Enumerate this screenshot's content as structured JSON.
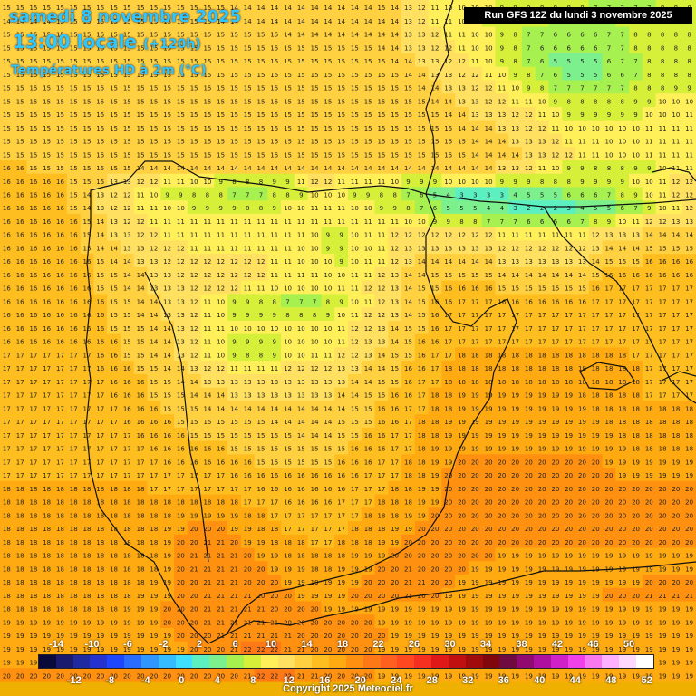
{
  "header": {
    "date": "samedi 8 novembre 2025",
    "time": "13:00 locale",
    "lead": "(+120h)",
    "variable": "Températures HD à 2m (°C)"
  },
  "run_info": "Run GFS 12Z du lundi 3 novembre 2025",
  "copyright": "Copyright 2025 Meteociel.fr",
  "legend": {
    "top_labels": [
      "-14",
      "-10",
      "-6",
      "-2",
      "2",
      "6",
      "10",
      "14",
      "18",
      "22",
      "26",
      "30",
      "34",
      "38",
      "42",
      "46",
      "50"
    ],
    "bottom_labels": [
      "-12",
      "-8",
      "-4",
      "0",
      "4",
      "8",
      "12",
      "16",
      "20",
      "24",
      "28",
      "32",
      "36",
      "40",
      "44",
      "48",
      "52"
    ],
    "colors": [
      "#0a0a3a",
      "#1a1a6e",
      "#1f2aa0",
      "#2632d0",
      "#1e46ff",
      "#2a6cff",
      "#2f95ff",
      "#34bcff",
      "#3ee0ff",
      "#5cf0c0",
      "#7cf08c",
      "#a6f050",
      "#d6f03a",
      "#fff05a",
      "#ffe060",
      "#ffd040",
      "#ffbe20",
      "#ffaa10",
      "#ff9010",
      "#ff7818",
      "#ff6020",
      "#ff4820",
      "#f53020",
      "#e01818",
      "#c01010",
      "#a00c0c",
      "#80080c",
      "#700a40",
      "#900a70",
      "#b010a0",
      "#d020c8",
      "#f040e8",
      "#f878f0",
      "#ffb0ff",
      "#ffd8ff",
      "#ffffff"
    ]
  },
  "grid": {
    "rows": [
      "15 15 15 15 15 15 15 15 15 15 15 15 15 15 15 15 15 14 14 14 14 14 14 14 14 14 14 14 15 14 13 12 11 10 10 10 10 9 9 9 8 8 8 8 7 7 7 7 7 8 8 8",
      "14 14 14 14 15 15 15 15 15 15 15 15 15 15 15 15 14 14 14 14 14 14 14 14 14 14 14 14 14 14 13 12 11 11 10 10 9 9 8 8 8 7 7 7 7 7 8 8 8 8 8 8",
      "15 15 15 15 15 15 15 15 15 15 15 15 15 15 15 15 15 15 15 15 15 14 14 14 14 14 14 14 14 14 13 13 12 11 11 10 10 9 8 7 7 6 6 6 6 7 7 8 8 8 8 8",
      "15 15 15 15 15 15 15 15 15 15 15 15 15 15 15 15 15 15 15 15 15 15 15 15 15 15 15 15 14 14 13 13 12 12 11 10 10 9 8 7 6 6 6 6 6 7 7 8 8 8 8 8",
      "15 15 15 15 15 15 15 15 15 15 15 15 15 15 15 15 15 15 15 15 15 15 15 15 15 15 15 15 15 14 14 13 13 12 12 11 10 9 8 7 6 5 5 5 5 6 7 7 8 8 8 8",
      "15 15 15 15 15 15 15 15 15 15 15 15 15 15 15 15 15 15 15 15 15 15 15 15 15 15 15 15 15 15 14 14 13 13 12 12 11 10 9 8 7 6 5 5 5 6 6 7 8 8 8 8",
      "15 15 15 15 15 15 15 15 15 15 15 15 15 15 15 15 15 15 15 15 15 15 15 15 15 15 15 15 15 15 15 14 14 13 13 12 12 11 10 9 8 7 7 7 7 7 7 8 8 8 9 9",
      "15 15 15 15 15 15 15 15 15 15 15 15 15 15 15 15 15 15 15 15 15 15 15 15 15 15 15 15 15 15 15 15 14 14 13 13 12 12 11 11 10 9 8 8 8 8 8 9 9 10 10 10",
      "15 15 15 15 15 15 15 15 15 15 15 15 15 15 15 15 15 15 15 15 15 15 15 15 15 15 15 15 15 15 15 15 15 14 14 13 13 13 12 12 11 10 9 9 9 9 9 9 10 10 10 11",
      "15 15 15 15 15 15 15 15 15 15 15 15 15 15 15 15 15 15 15 15 15 15 15 15 15 15 15 15 15 15 15 15 15 15 14 14 14 13 13 12 12 11 10 10 10 10 10 10 11 11 11 11",
      "15 15 15 15 15 15 15 15 15 15 15 15 15 15 15 15 15 15 15 15 15 15 15 15 15 15 15 15 15 15 15 15 15 15 15 14 14 14 13 13 13 12 11 11 11 10 10 10 11 11 11 11",
      "15 15 15 15 15 15 15 15 15 15 15 15 15 15 15 15 15 15 15 15 15 15 15 15 15 15 15 15 15 15 15 15 15 15 15 14 14 14 14 13 13 12 12 11 11 10 10 10 11 11 11 11",
      "16 16 15 15 15 15 15 15 15 15 14 14 14 14 14 14 14 14 14 14 14 14 14 14 14 14 14 14 14 14 14 14 14 14 14 14 14 13 13 12 11 10 9 9 8 8 8 9 9 10 11 11",
      "16 16 16 16 16 15 15 15 13 13 12 12 11 11 10 10 9 8 8 8 9 9 11 12 12 11 11 11 11 10 9 9 9 10 10 10 10 9 9 9 8 8 8 9 9 9 9 10 10 11 12 12",
      "16 16 16 16 16 15 14 13 12 12 11 10 9 9 8 8 8 7 7 7 8 8 9 10 10 10 9 9 8 8 7 6 5 4 3 3 3 3 4 5 5 5 6 6 6 7 8 9 10 11 12 12",
      "16 16 16 16 16 15 14 13 12 12 11 11 10 10 9 9 9 9 8 8 9 10 10 11 11 11 10 10 9 9 8 7 6 5 5 5 4 4 3 2 2 2 3 4 5 5 6 7 9 10 11 12",
      "16 16 16 16 16 16 15 14 13 12 12 11 11 11 11 11 11 11 11 11 11 11 11 11 11 11 11 11 11 11 10 10 9 9 8 8 7 7 7 6 6 6 6 7 8 9 10 11 12 12 13 13",
      "16 16 16 16 16 16 15 14 13 13 12 12 11 11 11 11 11 11 11 11 11 11 11 10 9 9 10 11 11 12 12 12 12 12 12 12 12 11 11 11 11 11 11 11 12 13 13 13 14 14 14 14",
      "16 16 16 16 16 16 15 14 14 13 13 12 12 12 11 11 11 11 11 11 11 11 10 10 9 9 10 10 11 12 13 13 13 13 13 13 13 12 12 12 12 12 12 12 13 14 14 14 15 15 15 15",
      "16 16 16 16 16 16 16 15 14 14 13 13 12 12 12 12 12 12 12 12 11 11 10 10 10 9 10 11 11 12 13 14 14 14 14 14 14 13 13 13 13 13 13 13 14 15 15 15 16 16 16 16",
      "16 16 16 16 16 16 16 15 15 14 14 13 13 12 12 12 12 12 12 12 11 11 11 11 10 10 11 11 12 13 14 14 15 15 15 15 15 14 14 14 14 14 14 14 15 16 16 16 16 16 16 16",
      "16 16 16 16 16 16 16 15 15 14 14 13 13 13 12 12 12 12 11 11 10 10 10 10 10 11 11 12 12 13 14 15 15 16 16 16 16 15 15 15 15 15 15 15 16 17 17 17 17 17 17 17",
      "16 16 16 16 16 16 16 16 15 15 14 14 13 13 12 11 10 9 9 8 8 7 7 7 8 9 10 11 12 13 14 15 16 16 17 17 17 16 16 16 16 16 16 16 17 17 17 17 17 17 17 17",
      "16 16 16 16 16 16 16 16 15 15 14 14 13 13 12 11 10 9 9 9 9 8 8 8 9 10 11 12 12 13 14 15 16 17 17 17 17 17 17 17 17 17 17 17 17 17 17 17 17 17 17 17",
      "16 16 16 16 16 16 16 16 15 15 15 14 14 13 12 11 11 10 10 10 10 10 10 10 10 11 12 12 13 14 15 15 16 17 17 17 17 17 17 17 17 17 17 17 17 17 17 17 17 17 17 17",
      "16 16 16 16 16 16 16 16 16 15 15 14 14 13 12 11 10 9 9 9 9 10 10 10 10 11 12 13 13 14 15 16 16 17 17 17 17 17 17 17 17 17 17 17 17 17 17 17 17 17 17 17",
      "17 17 17 17 17 17 17 16 16 15 15 14 14 13 12 11 10 9 8 8 9 10 10 11 11 12 12 13 14 15 15 16 17 17 18 18 18 18 18 18 18 18 18 18 18 18 18 17 17 17 17 17",
      "17 17 17 17 17 17 17 16 16 16 15 15 14 14 13 12 12 11 11 11 11 12 12 12 12 13 13 14 14 15 16 16 17 18 18 18 18 18 18 18 18 18 18 18 18 18 18 18 17 17 17 17",
      "17 17 17 17 17 17 17 17 16 16 16 15 15 14 14 13 13 13 13 13 13 13 13 13 13 13 14 14 15 15 16 17 17 18 18 18 18 18 18 18 18 18 18 18 18 18 18 18 17 17 17 17",
      "17 17 17 17 17 17 17 17 16 16 16 15 15 15 14 14 14 13 13 13 13 13 13 13 13 14 14 15 15 16 16 17 18 18 19 19 19 19 19 19 19 19 19 18 18 18 18 18 17 17 17 17",
      "17 17 17 17 17 17 17 17 17 16 16 16 15 15 15 14 14 14 14 14 14 14 14 14 14 14 15 15 16 16 17 17 18 18 19 19 19 19 19 19 19 19 19 19 18 18 18 18 18 18 18 18",
      "17 17 17 17 17 17 17 17 17 16 16 16 16 15 15 15 15 15 15 15 14 14 14 14 14 15 15 15 16 16 17 18 18 19 19 19 19 19 19 19 19 19 19 19 19 18 18 18 18 18 18 18",
      "17 17 17 17 17 17 17 17 17 17 16 16 16 16 15 15 15 15 15 15 15 15 14 14 14 15 15 16 16 17 17 18 18 19 19 19 19 19 19 19 19 19 19 19 19 19 18 18 18 18 18 18",
      "17 17 17 17 17 17 17 17 17 17 17 16 16 16 16 16 16 15 15 15 15 15 15 15 15 15 16 16 16 17 17 18 19 19 19 19 19 19 19 19 19 19 19 19 19 19 19 18 18 18 18 18",
      "17 17 17 17 17 17 17 17 17 17 17 17 16 16 16 16 16 16 16 15 15 15 15 15 15 16 16 16 17 17 18 18 19 19 20 20 20 20 20 20 20 20 20 20 20 19 19 19 19 19 19 19",
      "17 17 17 17 17 17 17 17 17 17 17 17 17 17 17 17 17 16 16 16 16 16 16 16 16 16 16 17 17 17 18 18 19 20 20 20 20 20 20 20 20 20 20 20 20 20 19 19 19 19 19 19",
      "18 18 18 18 18 18 18 18 18 18 18 17 17 17 17 17 17 17 17 16 16 16 16 16 16 16 17 17 17 18 18 19 19 20 20 20 20 20 20 20 20 20 20 20 20 20 20 20 20 20 20 20",
      "18 18 18 18 18 18 18 18 18 18 18 18 18 18 18 18 18 18 17 17 17 16 16 16 16 17 17 17 18 18 18 19 19 20 20 20 20 20 20 20 20 20 20 20 20 20 20 20 20 20 20 20",
      "18 18 18 18 18 18 18 18 18 18 18 18 18 19 19 19 19 19 18 18 17 17 17 17 17 17 17 18 18 18 19 19 20 20 20 20 20 20 20 20 20 20 20 20 20 20 20 20 20 20 20 20",
      "18 18 18 18 18 18 18 18 18 18 18 18 19 19 20 20 20 19 19 18 18 17 17 17 17 17 18 18 18 19 19 20 20 20 20 20 20 20 20 20 20 20 20 20 20 20 20 20 20 20 20 20",
      "18 18 18 18 18 18 18 18 18 18 18 18 19 20 20 21 21 20 19 19 18 18 18 17 17 18 18 18 19 19 20 20 20 20 20 20 20 20 20 20 20 20 20 20 20 20 20 20 20 20 20 20",
      "18 18 18 18 18 18 18 18 18 18 18 18 19 20 21 21 21 21 20 19 19 18 18 18 18 18 19 19 19 20 20 20 20 20 20 20 20 19 19 19 19 19 19 19 19 19 19 19 19 19 19 19",
      "18 18 18 18 18 18 18 18 18 18 18 18 19 20 21 21 21 21 20 20 19 19 19 18 18 19 19 19 20 20 21 20 20 20 20 19 19 19 19 19 19 19 19 19 19 19 19 19 19 19 19 19",
      "18 18 18 18 18 18 18 18 18 18 18 19 19 20 20 21 21 21 20 20 20 19 19 19 19 19 19 20 20 20 21 21 20 20 19 19 19 19 19 19 19 19 19 19 19 19 19 19 20 20 20 20",
      "18 18 18 18 18 18 18 18 18 18 19 19 19 20 20 21 21 21 21 20 20 20 19 19 19 19 20 20 20 20 21 20 20 19 19 19 19 19 19 19 19 19 19 19 19 20 20 20 21 21 21 21",
      "18 18 18 18 18 18 18 18 18 19 19 19 20 20 20 21 21 21 21 21 20 20 20 20 19 19 19 19 19 19 19 19 19 19 19 19 19 19 19 19 19 19 19 19 19 19 19 19 19 19 19 19",
      "19 19 19 19 19 19 19 19 19 19 19 19 20 20 20 21 21 21 21 21 21 20 20 20 20 20 20 20 19 19 19 19 19 19 19 19 19 19 19 19 19 19 19 19 19 19 19 19 19 19 19 19",
      "19 19 19 19 19 19 19 19 19 19 19 19 19 20 20 20 21 21 21 21 21 21 20 20 20 20 20 20 20 19 19 19 19 19 19 19 19 19 19 19 19 19 19 19 19 19 19 19 19 19 19 19",
      "19 19 19 19 19 19 19 19 19 19 19 19 19 19 20 20 20 21 22 22 22 21 21 20 20 20 20 20 19 19 19 19 19 19 19 19 19 19 19 19 19 19 19 19 19 19 19 19 19 19 19 19",
      "19 19 19 19 19 19 19 19 19 19 19 19 19 19 19 19 20 20 21 22 22 22 21 21 20 20 20 20 19 19 19 19 19 19 19 19 19 19 19 19 19 19 19 19 19 19 19 19 19 19 19 19",
      "20 20 20 20 20 20 20 20 20 20 20 20 20 20 20 20 20 20 21 22 22 22 21 21 20 20 20 20 19 19 19 19 19 19 19 19 19 19 19 19 19 19 19 19 19 19 19 19 19 19 19 19"
    ]
  }
}
